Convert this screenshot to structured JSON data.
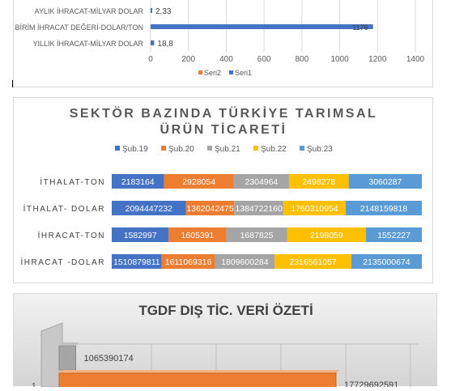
{
  "chart_data": [
    {
      "type": "bar",
      "orientation": "horizontal",
      "categories": [
        "AYLIK İHRACAT-MİLYAR DOLAR",
        "BİRİM İHRACAT DEĞERİ-DOLAR/TON",
        "YILLIK İHRACAT-MİLYAR DOLAR"
      ],
      "series": [
        {
          "name": "Seri2",
          "color": "#ed7d31",
          "values": [
            null,
            null,
            null
          ]
        },
        {
          "name": "Seri1",
          "color": "#4472c4",
          "values": [
            2.33,
            1176,
            18.8
          ],
          "labels": [
            "2,33",
            "1176",
            "18,8"
          ]
        }
      ],
      "xticks": [
        "0",
        "200",
        "400",
        "600",
        "800",
        "1000",
        "1200",
        "1400"
      ],
      "xlim": [
        0,
        1400
      ],
      "grid": true,
      "legend": "bottom"
    },
    {
      "type": "bar",
      "orientation": "horizontal",
      "stacked": "percent",
      "title_line1": "SEKTÖR BAZINDA TÜRKİYE TARIMSAL",
      "title_line2": "ÜRÜN TİCARETİ",
      "legend": "top",
      "categories": [
        "İTHALAT-TON",
        "İTHALAT- DOLAR",
        "İHRACAT-TON",
        "İHRACAT -DOLAR"
      ],
      "series": [
        {
          "name": "Şub.19",
          "color": "#4472c4",
          "values": [
            2183164,
            2094447232,
            1582997,
            1510879811
          ],
          "labels": [
            "2183164",
            "2094447232",
            "1582997",
            "1510879811"
          ]
        },
        {
          "name": "Şub.20",
          "color": "#ed7d31",
          "values": [
            2928054,
            1362042475,
            1605391,
            1611069316
          ],
          "labels": [
            "2928054",
            "1362042475",
            "1605391",
            "1611069316"
          ]
        },
        {
          "name": "Şub.21",
          "color": "#a5a5a5",
          "values": [
            2304964,
            1384722160,
            1687825,
            1809600284
          ],
          "labels": [
            "2304964",
            "1384722160",
            "1687825",
            "1809600284"
          ]
        },
        {
          "name": "Şub.22",
          "color": "#ffc000",
          "values": [
            2498278,
            1760310954,
            2198059,
            2316561057
          ],
          "labels": [
            "2498278",
            "1760310954",
            "2198059",
            "2316561057"
          ]
        },
        {
          "name": "Şub.23",
          "color": "#5b9bd5",
          "values": [
            3060287,
            2148159818,
            1552227,
            2135000674
          ],
          "labels": [
            "3060287",
            "2148159818",
            "1552227",
            "2135000674"
          ]
        }
      ]
    },
    {
      "type": "bar",
      "orientation": "horizontal",
      "style": "3d",
      "title": "TGDF DIŞ TİC. VERİ ÖZETİ",
      "categories": [
        "1"
      ],
      "series": [
        {
          "color": "#a5a5a5",
          "values": [
            1065390174
          ],
          "labels": [
            "1065390174"
          ]
        },
        {
          "color": "#ed7d31",
          "values": [
            17729692591
          ],
          "labels": [
            "17729692591"
          ]
        }
      ]
    }
  ]
}
